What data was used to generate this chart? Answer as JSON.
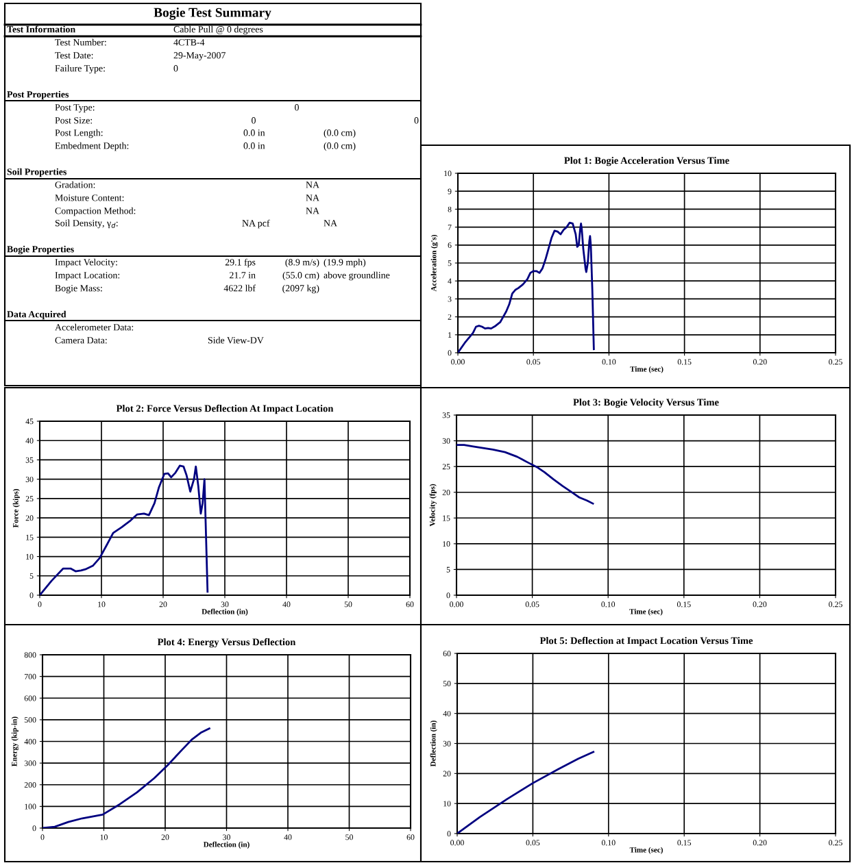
{
  "chart_data": [
    {
      "type": "other",
      "title": "Bogie Test Summary",
      "annotations": [
        "Test Information",
        "Cable Pull @ 0 degrees",
        "Test Number:",
        "4CTB-4",
        "Test Date:",
        "29-May-2007",
        "Failure Type:",
        "0",
        "Post Properties",
        "Post Type:",
        "0",
        "Post Size:",
        "0",
        "0",
        "Post Length:",
        "0.0 in",
        "(0.0 cm)",
        "Embedment Depth:",
        "0.0 in",
        "(0.0 cm)",
        "Soil Properties",
        "Gradation:",
        "NA",
        "Moisture Content:",
        "NA",
        "Compaction Method:",
        "NA",
        "Soil Density, γ$_{d}$:",
        "NA pcf",
        "NA",
        "Bogie Properties",
        "Impact Velocity:",
        "29.1 fps",
        "(8.9 m/s)",
        "(19.9 mph)",
        "Impact Location:",
        "21.7 in",
        "(55.0 cm)",
        "above groundline",
        "Bogie Mass:",
        "4622 lbf",
        "(2097 kg)",
        "Data Acquired",
        "Accelerometer Data:",
        "Camera Data:",
        "Side View-DV"
      ]
    },
    {
      "type": "line",
      "title": "Plot 1: Bogie Acceleration Versus Time",
      "xlabel": "Time (sec)",
      "ylabel": "Acceleration (g's)",
      "grid": true,
      "xlim": [
        0,
        0.25
      ],
      "xticks": [
        {
          "value": 0,
          "label": "0.00"
        },
        {
          "value": 0.05,
          "label": "0.05"
        },
        {
          "value": 0.1,
          "label": "0.10"
        },
        {
          "value": 0.15,
          "label": "0.15"
        },
        {
          "value": 0.2,
          "label": "0.20"
        },
        {
          "value": 0.25,
          "label": "0.25"
        }
      ],
      "ylim": [
        0,
        10
      ],
      "yticks": [
        0,
        1,
        2,
        3,
        4,
        5,
        6,
        7,
        8,
        9,
        10
      ],
      "series": [
        {
          "color": "#000080",
          "x": [
            0.0,
            0.005,
            0.01,
            0.012,
            0.014,
            0.016,
            0.018,
            0.02,
            0.022,
            0.025,
            0.028,
            0.03,
            0.032,
            0.034,
            0.036,
            0.038,
            0.04,
            0.043,
            0.046,
            0.048,
            0.05,
            0.052,
            0.054,
            0.056,
            0.058,
            0.06,
            0.062,
            0.064,
            0.066,
            0.068,
            0.07,
            0.072,
            0.074,
            0.076,
            0.078,
            0.079,
            0.08,
            0.081,
            0.0815,
            0.082,
            0.083,
            0.0845,
            0.085,
            0.086,
            0.087,
            0.0875,
            0.088,
            0.089,
            0.09
          ],
          "values": [
            0.0,
            0.6,
            1.1,
            1.45,
            1.5,
            1.45,
            1.35,
            1.38,
            1.35,
            1.5,
            1.7,
            2.0,
            2.3,
            2.7,
            3.3,
            3.5,
            3.6,
            3.8,
            4.1,
            4.45,
            4.55,
            4.55,
            4.45,
            4.7,
            5.2,
            5.8,
            6.4,
            6.8,
            6.75,
            6.6,
            6.85,
            7.0,
            7.25,
            7.2,
            6.6,
            5.9,
            6.0,
            6.9,
            7.2,
            6.9,
            5.8,
            4.7,
            4.5,
            5.0,
            6.2,
            6.5,
            6.0,
            3.5,
            0.2
          ]
        }
      ]
    },
    {
      "type": "line",
      "title": "Plot 2: Force Versus Deflection At Impact Location",
      "xlabel": "Deflection (in)",
      "ylabel": "Force (kips)",
      "grid": true,
      "xlim": [
        0,
        60
      ],
      "xticks": [
        0,
        10,
        20,
        30,
        40,
        50,
        60
      ],
      "ylim": [
        0,
        45
      ],
      "yticks": [
        0,
        5,
        10,
        15,
        20,
        25,
        30,
        35,
        40,
        45
      ],
      "series": [
        {
          "color": "#000080",
          "x": [
            0,
            1.9,
            3.8,
            5.0,
            5.8,
            6.7,
            7.4,
            8.6,
            9.7,
            10.8,
            11.9,
            13.3,
            14.7,
            15.8,
            16.9,
            17.7,
            18.6,
            19.3,
            20.2,
            20.8,
            21.3,
            22.0,
            22.7,
            23.3,
            23.8,
            24.4,
            25.0,
            25.3,
            25.7,
            26.1,
            26.4,
            26.7,
            27.2
          ],
          "values": [
            0,
            3.7,
            6.9,
            6.9,
            6.2,
            6.4,
            6.7,
            7.6,
            9.6,
            12.8,
            16.1,
            17.6,
            19.3,
            20.9,
            21.1,
            20.7,
            23.8,
            27.8,
            31.4,
            31.5,
            30.5,
            31.7,
            33.5,
            33.3,
            31.0,
            26.8,
            30.0,
            33.3,
            28.2,
            21.1,
            23.8,
            30.0,
            0.9
          ]
        }
      ]
    },
    {
      "type": "line",
      "title": "Plot 3: Bogie Velocity Versus Time",
      "xlabel": "Time (sec)",
      "ylabel": "Velocity (fps)",
      "grid": true,
      "xlim": [
        0,
        0.25
      ],
      "xticks": [
        {
          "value": 0,
          "label": "0.00"
        },
        {
          "value": 0.05,
          "label": "0.05"
        },
        {
          "value": 0.1,
          "label": "0.10"
        },
        {
          "value": 0.15,
          "label": "0.15"
        },
        {
          "value": 0.2,
          "label": "0.20"
        },
        {
          "value": 0.25,
          "label": "0.25"
        }
      ],
      "ylim": [
        0,
        35
      ],
      "yticks": [
        0,
        5,
        10,
        15,
        20,
        25,
        30,
        35
      ],
      "series": [
        {
          "color": "#000080",
          "x": [
            0.0,
            0.005,
            0.011,
            0.024,
            0.032,
            0.04,
            0.047,
            0.053,
            0.058,
            0.064,
            0.07,
            0.076,
            0.081,
            0.086,
            0.09
          ],
          "values": [
            29.2,
            29.2,
            28.9,
            28.3,
            27.8,
            26.9,
            25.8,
            24.9,
            23.9,
            22.5,
            21.2,
            20.0,
            19.0,
            18.4,
            17.8
          ]
        }
      ]
    },
    {
      "type": "line",
      "title": "Plot 4: Energy Versus Deflection",
      "xlabel": "Deflection (in)",
      "ylabel": "Energy (kip-in)",
      "grid": true,
      "xlim": [
        0,
        60
      ],
      "xticks": [
        0,
        10,
        20,
        30,
        40,
        50,
        60
      ],
      "ylim": [
        0,
        800
      ],
      "yticks": [
        0,
        100,
        200,
        300,
        400,
        500,
        600,
        700,
        800
      ],
      "series": [
        {
          "color": "#000080",
          "x": [
            0,
            2,
            4.2,
            6.5,
            9.8,
            12.6,
            15.4,
            18.2,
            20.4,
            22.7,
            24.4,
            25.8,
            27.2
          ],
          "values": [
            0,
            6,
            28,
            45,
            62,
            110,
            165,
            230,
            290,
            360,
            410,
            440,
            460
          ]
        }
      ]
    },
    {
      "type": "line",
      "title": "Plot 5: Deflection at Impact Location Versus Time",
      "xlabel": "Time (sec)",
      "ylabel": "Deflection (in)",
      "grid": true,
      "xlim": [
        0,
        0.25
      ],
      "xticks": [
        {
          "value": 0,
          "label": "0.00"
        },
        {
          "value": 0.05,
          "label": "0.05"
        },
        {
          "value": 0.1,
          "label": "0.10"
        },
        {
          "value": 0.15,
          "label": "0.15"
        },
        {
          "value": 0.2,
          "label": "0.20"
        },
        {
          "value": 0.25,
          "label": "0.25"
        }
      ],
      "ylim": [
        0,
        60
      ],
      "yticks": [
        0,
        10,
        20,
        30,
        40,
        50,
        60
      ],
      "series": [
        {
          "color": "#000080",
          "x": [
            0.0,
            0.015,
            0.033,
            0.05,
            0.067,
            0.08,
            0.09
          ],
          "values": [
            0,
            5.5,
            11.5,
            16.8,
            21.5,
            24.9,
            27.2
          ]
        }
      ]
    }
  ]
}
